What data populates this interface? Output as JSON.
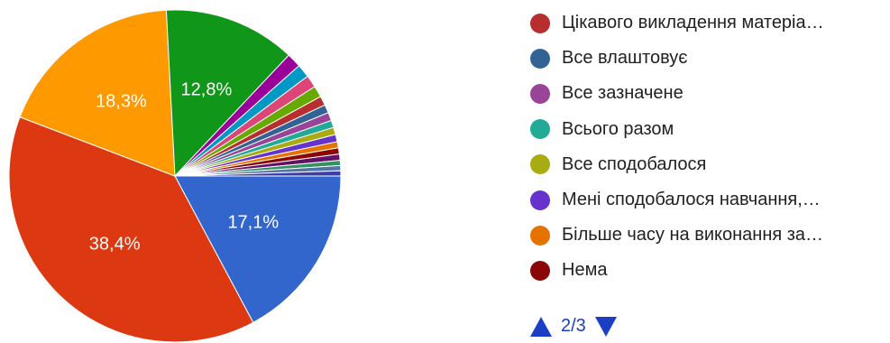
{
  "chart_data": {
    "type": "pie",
    "slices": [
      {
        "label": "",
        "value": 17.1,
        "color": "#3366cc",
        "display": "17,1%"
      },
      {
        "label": "",
        "value": 38.4,
        "color": "#dc3912",
        "display": "38,4%"
      },
      {
        "label": "",
        "value": 18.3,
        "color": "#ff9900",
        "display": "18,3%"
      },
      {
        "label": "",
        "value": 12.8,
        "color": "#109618",
        "display": "12,8%"
      },
      {
        "label": "",
        "value": 1.4,
        "color": "#990099",
        "display": ""
      },
      {
        "label": "",
        "value": 1.3,
        "color": "#0099c6",
        "display": ""
      },
      {
        "label": "",
        "value": 1.2,
        "color": "#dd4477",
        "display": ""
      },
      {
        "label": "",
        "value": 1.1,
        "color": "#66aa00",
        "display": ""
      },
      {
        "label": "Цікавого викладення матеріа…",
        "value": 0.9,
        "color": "#b82e2e",
        "display": ""
      },
      {
        "label": "Все влаштовує",
        "value": 0.8,
        "color": "#316395",
        "display": ""
      },
      {
        "label": "Все зазначене",
        "value": 0.8,
        "color": "#994499",
        "display": ""
      },
      {
        "label": "Всього разом",
        "value": 0.7,
        "color": "#22aa99",
        "display": ""
      },
      {
        "label": "Все сподобалося",
        "value": 0.7,
        "color": "#aaaa11",
        "display": ""
      },
      {
        "label": "Мені сподобалося навчання,…",
        "value": 0.7,
        "color": "#6633cc",
        "display": ""
      },
      {
        "label": "Більше часу на виконання за…",
        "value": 0.6,
        "color": "#e67300",
        "display": ""
      },
      {
        "label": "Нема",
        "value": 0.6,
        "color": "#8b0707",
        "display": ""
      },
      {
        "label": "",
        "value": 0.6,
        "color": "#651067",
        "display": ""
      },
      {
        "label": "",
        "value": 0.5,
        "color": "#329262",
        "display": ""
      },
      {
        "label": "",
        "value": 0.5,
        "color": "#5574a6",
        "display": ""
      },
      {
        "label": "",
        "value": 0.5,
        "color": "#3b3eac",
        "display": ""
      }
    ],
    "legend_position": "right"
  },
  "legend": {
    "items": [
      {
        "label": "Цікавого викладення матеріа…",
        "color": "#b82e2e"
      },
      {
        "label": "Все влаштовує",
        "color": "#316395"
      },
      {
        "label": "Все зазначене",
        "color": "#994499"
      },
      {
        "label": "Всього разом",
        "color": "#22aa99"
      },
      {
        "label": "Все сподобалося",
        "color": "#aaaa11"
      },
      {
        "label": "Мені сподобалося навчання,…",
        "color": "#6633cc"
      },
      {
        "label": "Більше часу на виконання за…",
        "color": "#e67300"
      },
      {
        "label": "Нема",
        "color": "#8b0707"
      }
    ]
  },
  "pager": {
    "text": "2/3",
    "up_icon": "triangle-up-icon",
    "down_icon": "triangle-down-icon"
  }
}
